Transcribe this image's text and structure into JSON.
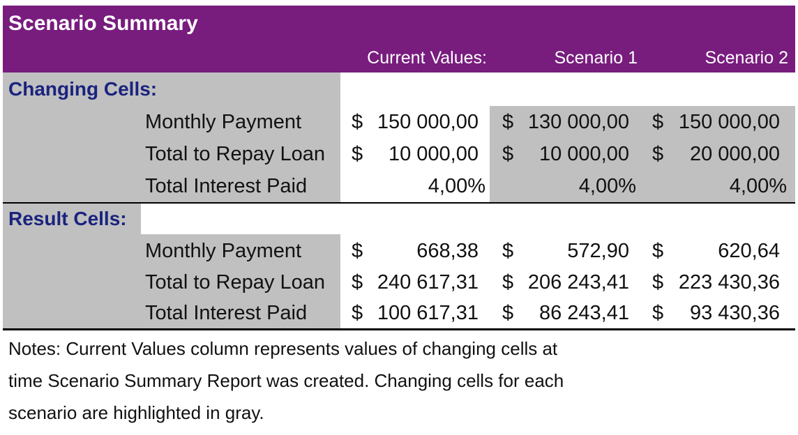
{
  "report": {
    "title": "Scenario Summary",
    "columns": [
      "Current Values:",
      "Scenario 1",
      "Scenario 2"
    ],
    "changing_cells": {
      "label": "Changing Cells:",
      "rows": [
        {
          "label": "Monthly Payment",
          "values": [
            {
              "currency": "$",
              "amount": "150 000,00"
            },
            {
              "currency": "$",
              "amount": "130 000,00"
            },
            {
              "currency": "$",
              "amount": "150 000,00"
            }
          ]
        },
        {
          "label": "Total to Repay Loan",
          "values": [
            {
              "currency": "$",
              "amount": "10 000,00"
            },
            {
              "currency": "$",
              "amount": "10 000,00"
            },
            {
              "currency": "$",
              "amount": "20 000,00"
            }
          ]
        },
        {
          "label": "Total Interest Paid",
          "values": [
            {
              "currency": "",
              "amount": "4,00%"
            },
            {
              "currency": "",
              "amount": "4,00%"
            },
            {
              "currency": "",
              "amount": "4,00%"
            }
          ]
        }
      ]
    },
    "result_cells": {
      "label": "Result Cells:",
      "rows": [
        {
          "label": "Monthly Payment",
          "values": [
            {
              "currency": "$",
              "amount": "668,38"
            },
            {
              "currency": "$",
              "amount": "572,90"
            },
            {
              "currency": "$",
              "amount": "620,64"
            }
          ]
        },
        {
          "label": "Total to Repay Loan",
          "values": [
            {
              "currency": "$",
              "amount": "240 617,31"
            },
            {
              "currency": "$",
              "amount": "206 243,41"
            },
            {
              "currency": "$",
              "amount": "223 430,36"
            }
          ]
        },
        {
          "label": "Total Interest Paid",
          "values": [
            {
              "currency": "$",
              "amount": "100 617,31"
            },
            {
              "currency": "$",
              "amount": "86 243,41"
            },
            {
              "currency": "$",
              "amount": "93 430,36"
            }
          ]
        }
      ]
    },
    "notes": [
      "Notes:  Current Values column represents values of changing cells at",
      "time Scenario Summary Report was created.  Changing cells for each",
      "scenario are highlighted in gray."
    ]
  },
  "colors": {
    "header": "#781c7e",
    "changing_cell": "#c0c0c0",
    "section_label": "#1a237e"
  }
}
